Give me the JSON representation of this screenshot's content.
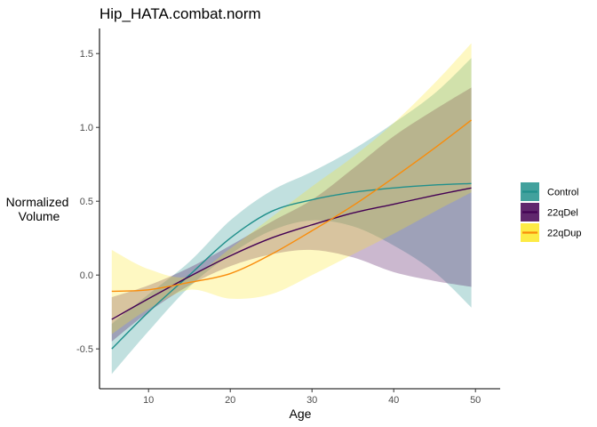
{
  "chart_data": {
    "type": "line",
    "title": "Hip_HATA.combat.norm",
    "xlabel": "Age",
    "ylabel": [
      "Normalized",
      "Volume"
    ],
    "xlim": [
      4,
      51.5
    ],
    "ylim": [
      -0.77,
      1.67
    ],
    "x_ticks": [
      10,
      20,
      30,
      40,
      50
    ],
    "y_ticks": [
      -0.5,
      0.0,
      0.5,
      1.0,
      1.5
    ],
    "y_tick_labels": [
      "-0.5",
      "0.0",
      "0.5",
      "1.0",
      "1.5"
    ],
    "grid": false,
    "legend_position": "right",
    "series": [
      {
        "name": "Control",
        "line_color": "#21908C",
        "fill_color": "#21908C",
        "x": [
          5.5,
          10,
          15,
          20,
          25,
          30,
          35,
          40,
          45,
          49.5
        ],
        "y": [
          -0.5,
          -0.25,
          0.0,
          0.25,
          0.43,
          0.51,
          0.56,
          0.59,
          0.61,
          0.62
        ],
        "lower": [
          -0.67,
          -0.38,
          -0.08,
          0.14,
          0.3,
          0.37,
          0.33,
          0.2,
          0.02,
          -0.22
        ],
        "upper": [
          -0.33,
          -0.13,
          0.09,
          0.37,
          0.57,
          0.7,
          0.85,
          1.03,
          1.23,
          1.47
        ]
      },
      {
        "name": "22qDel",
        "line_color": "#440154",
        "fill_color": "#440154",
        "x": [
          5.5,
          10,
          15,
          20,
          25,
          30,
          35,
          40,
          45,
          49.5
        ],
        "y": [
          -0.3,
          -0.16,
          -0.01,
          0.13,
          0.25,
          0.34,
          0.42,
          0.48,
          0.54,
          0.59
        ],
        "lower": [
          -0.45,
          -0.25,
          -0.07,
          0.06,
          0.14,
          0.17,
          0.12,
          0.02,
          -0.04,
          -0.08
        ],
        "upper": [
          -0.15,
          -0.07,
          0.05,
          0.2,
          0.36,
          0.51,
          0.72,
          0.94,
          1.12,
          1.27
        ]
      },
      {
        "name": "22qDup",
        "line_color": "#F98C0A",
        "fill_color": "#FDE725",
        "x": [
          5.5,
          10,
          15,
          20,
          25,
          30,
          35,
          40,
          45,
          49.5
        ],
        "y": [
          -0.11,
          -0.1,
          -0.05,
          0.01,
          0.14,
          0.3,
          0.47,
          0.66,
          0.86,
          1.05
        ],
        "lower": [
          -0.4,
          -0.23,
          -0.1,
          -0.16,
          -0.13,
          0.0,
          0.14,
          0.28,
          0.43,
          0.56
        ],
        "upper": [
          0.17,
          0.04,
          -0.01,
          0.18,
          0.39,
          0.6,
          0.8,
          1.03,
          1.3,
          1.57
        ]
      }
    ]
  },
  "colors": {
    "axis": "#000000",
    "tick": "#333333"
  }
}
